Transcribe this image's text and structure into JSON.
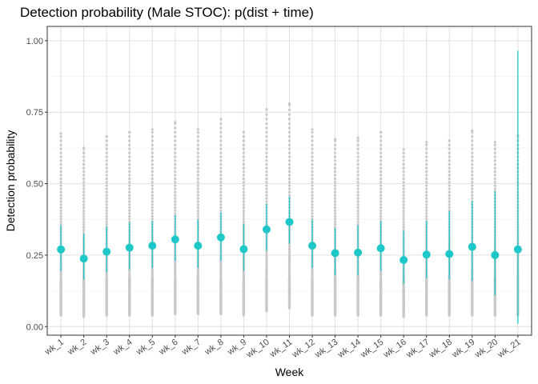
{
  "chart_data": {
    "type": "scatter",
    "title": "Detection probability (Male STOC): p(dist + time)",
    "xlabel": "Week",
    "ylabel": "Detection probability",
    "ylim": [
      -0.03,
      1.05
    ],
    "yticks": [
      0.0,
      0.25,
      0.5,
      0.75,
      1.0
    ],
    "ytick_labels": [
      "0.00",
      "0.25",
      "0.50",
      "0.75",
      "1.00"
    ],
    "grid": true,
    "categories": [
      "wk_1",
      "wk_2",
      "wk_3",
      "wk_4",
      "wk_5",
      "wk_6",
      "wk_7",
      "wk_8",
      "wk_9",
      "wk_10",
      "wk_11",
      "wk_12",
      "wk_13",
      "wk_14",
      "wk_15",
      "wk_16",
      "wk_17",
      "wk_18",
      "wk_19",
      "wk_20",
      "wk_21"
    ],
    "series": [
      {
        "kind": "estimate",
        "values": [
          0.27,
          0.238,
          0.262,
          0.276,
          0.283,
          0.305,
          0.283,
          0.312,
          0.271,
          0.34,
          0.366,
          0.283,
          0.257,
          0.259,
          0.274,
          0.233,
          0.252,
          0.254,
          0.279,
          0.25,
          0.27
        ],
        "lower": [
          0.195,
          0.165,
          0.19,
          0.2,
          0.205,
          0.23,
          0.205,
          0.23,
          0.195,
          0.265,
          0.29,
          0.205,
          0.18,
          0.18,
          0.195,
          0.15,
          0.17,
          0.165,
          0.16,
          0.11,
          0.01
        ],
        "upper": [
          0.355,
          0.325,
          0.35,
          0.365,
          0.37,
          0.39,
          0.375,
          0.4,
          0.36,
          0.43,
          0.455,
          0.375,
          0.345,
          0.355,
          0.37,
          0.335,
          0.37,
          0.405,
          0.44,
          0.475,
          0.965
        ]
      },
      {
        "kind": "site-level",
        "min": [
          0.04,
          0.035,
          0.04,
          0.04,
          0.04,
          0.045,
          0.045,
          0.045,
          0.04,
          0.055,
          0.065,
          0.04,
          0.04,
          0.04,
          0.04,
          0.035,
          0.04,
          0.04,
          0.04,
          0.04,
          0.04
        ],
        "max": [
          0.675,
          0.625,
          0.665,
          0.68,
          0.69,
          0.715,
          0.69,
          0.725,
          0.68,
          0.76,
          0.78,
          0.69,
          0.655,
          0.66,
          0.68,
          0.62,
          0.645,
          0.65,
          0.685,
          0.645,
          0.67
        ]
      }
    ],
    "colors": {
      "estimate": "#1ec8c8",
      "site_points": "#c8c8c8",
      "grid_major": "#e0e0e0",
      "grid_minor": "#f0f0f0",
      "panel_border": "#333333"
    }
  }
}
